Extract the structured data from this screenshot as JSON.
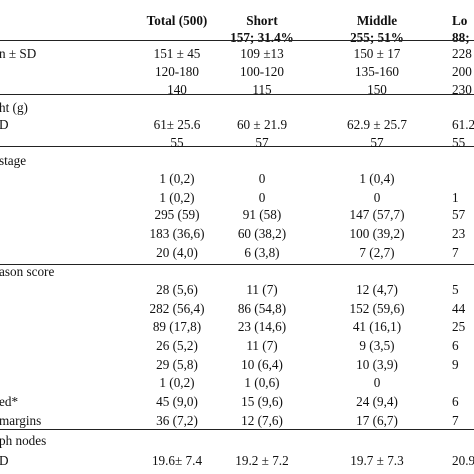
{
  "header": {
    "line1": [
      "",
      "Total (500)",
      "Short",
      "Middle",
      "Lo"
    ],
    "line2": [
      "",
      "",
      "157; 31.4%",
      "255; 51%",
      "88; "
    ]
  },
  "rows": [
    {
      "cells": [
        "n ± SD",
        "151   ± 45",
        "109   ±13",
        "150   ± 17",
        "228"
      ]
    },
    {
      "cells": [
        "",
        "120-180",
        "100-120",
        "135-160",
        "200"
      ]
    },
    {
      "cells": [
        "",
        "140",
        "115",
        "150",
        "230"
      ]
    },
    {
      "cells": [
        "ht (g)",
        "",
        "",
        "",
        ""
      ]
    },
    {
      "cells": [
        "D",
        "61± 25.6",
        "60 ± 21.9",
        "62.9 ± 25.7",
        "61.2"
      ]
    },
    {
      "cells": [
        "",
        "55",
        "57",
        "57",
        "55"
      ]
    },
    {
      "cells": [
        "stage",
        "",
        "",
        "",
        ""
      ]
    },
    {
      "cells": [
        "",
        "1 (0,2)",
        "0",
        "1 (0,4)",
        ""
      ]
    },
    {
      "cells": [
        "",
        "1 (0,2)",
        "0",
        "0",
        "1"
      ]
    },
    {
      "cells": [
        "",
        "295 (59)",
        "91 (58)",
        "147 (57,7)",
        "57"
      ]
    },
    {
      "cells": [
        "",
        "183 (36,6)",
        "60 (38,2)",
        "100 (39,2)",
        "23"
      ]
    },
    {
      "cells": [
        "",
        "20 (4,0)",
        "6 (3,8)",
        "7 (2,7)",
        "7"
      ]
    },
    {
      "cells": [
        "ason score",
        "",
        "",
        "",
        ""
      ]
    },
    {
      "cells": [
        "",
        "28 (5,6)",
        "11 (7)",
        "12 (4,7)",
        "5"
      ]
    },
    {
      "cells": [
        "",
        "282 (56,4)",
        "86 (54,8)",
        "152 (59,6)",
        "44"
      ]
    },
    {
      "cells": [
        "",
        "89 (17,8)",
        "23 (14,6)",
        "41 (16,1)",
        "25"
      ]
    },
    {
      "cells": [
        "",
        "26 (5,2)",
        "11 (7)",
        "9 (3,5)",
        "6"
      ]
    },
    {
      "cells": [
        "",
        "29 (5,8)",
        "10 (6,4)",
        "10 (3,9)",
        "9"
      ]
    },
    {
      "cells": [
        "",
        "1 (0,2)",
        "1 (0,6)",
        "0",
        ""
      ]
    },
    {
      "cells": [
        "ed*",
        "45 (9,0)",
        "15 (9,6)",
        "24 (9,4)",
        "6"
      ]
    },
    {
      "cells": [
        " margins",
        "36 (7,2)",
        "12 (7,6)",
        "17 (6,7)",
        "7"
      ]
    },
    {
      "cells": [
        "ph nodes",
        "",
        "",
        "",
        ""
      ]
    },
    {
      "cells": [
        "D",
        "19.6± 7.4",
        "19.2 ± 7.2",
        "19.7 ± 7.3",
        "20.9"
      ]
    }
  ]
}
